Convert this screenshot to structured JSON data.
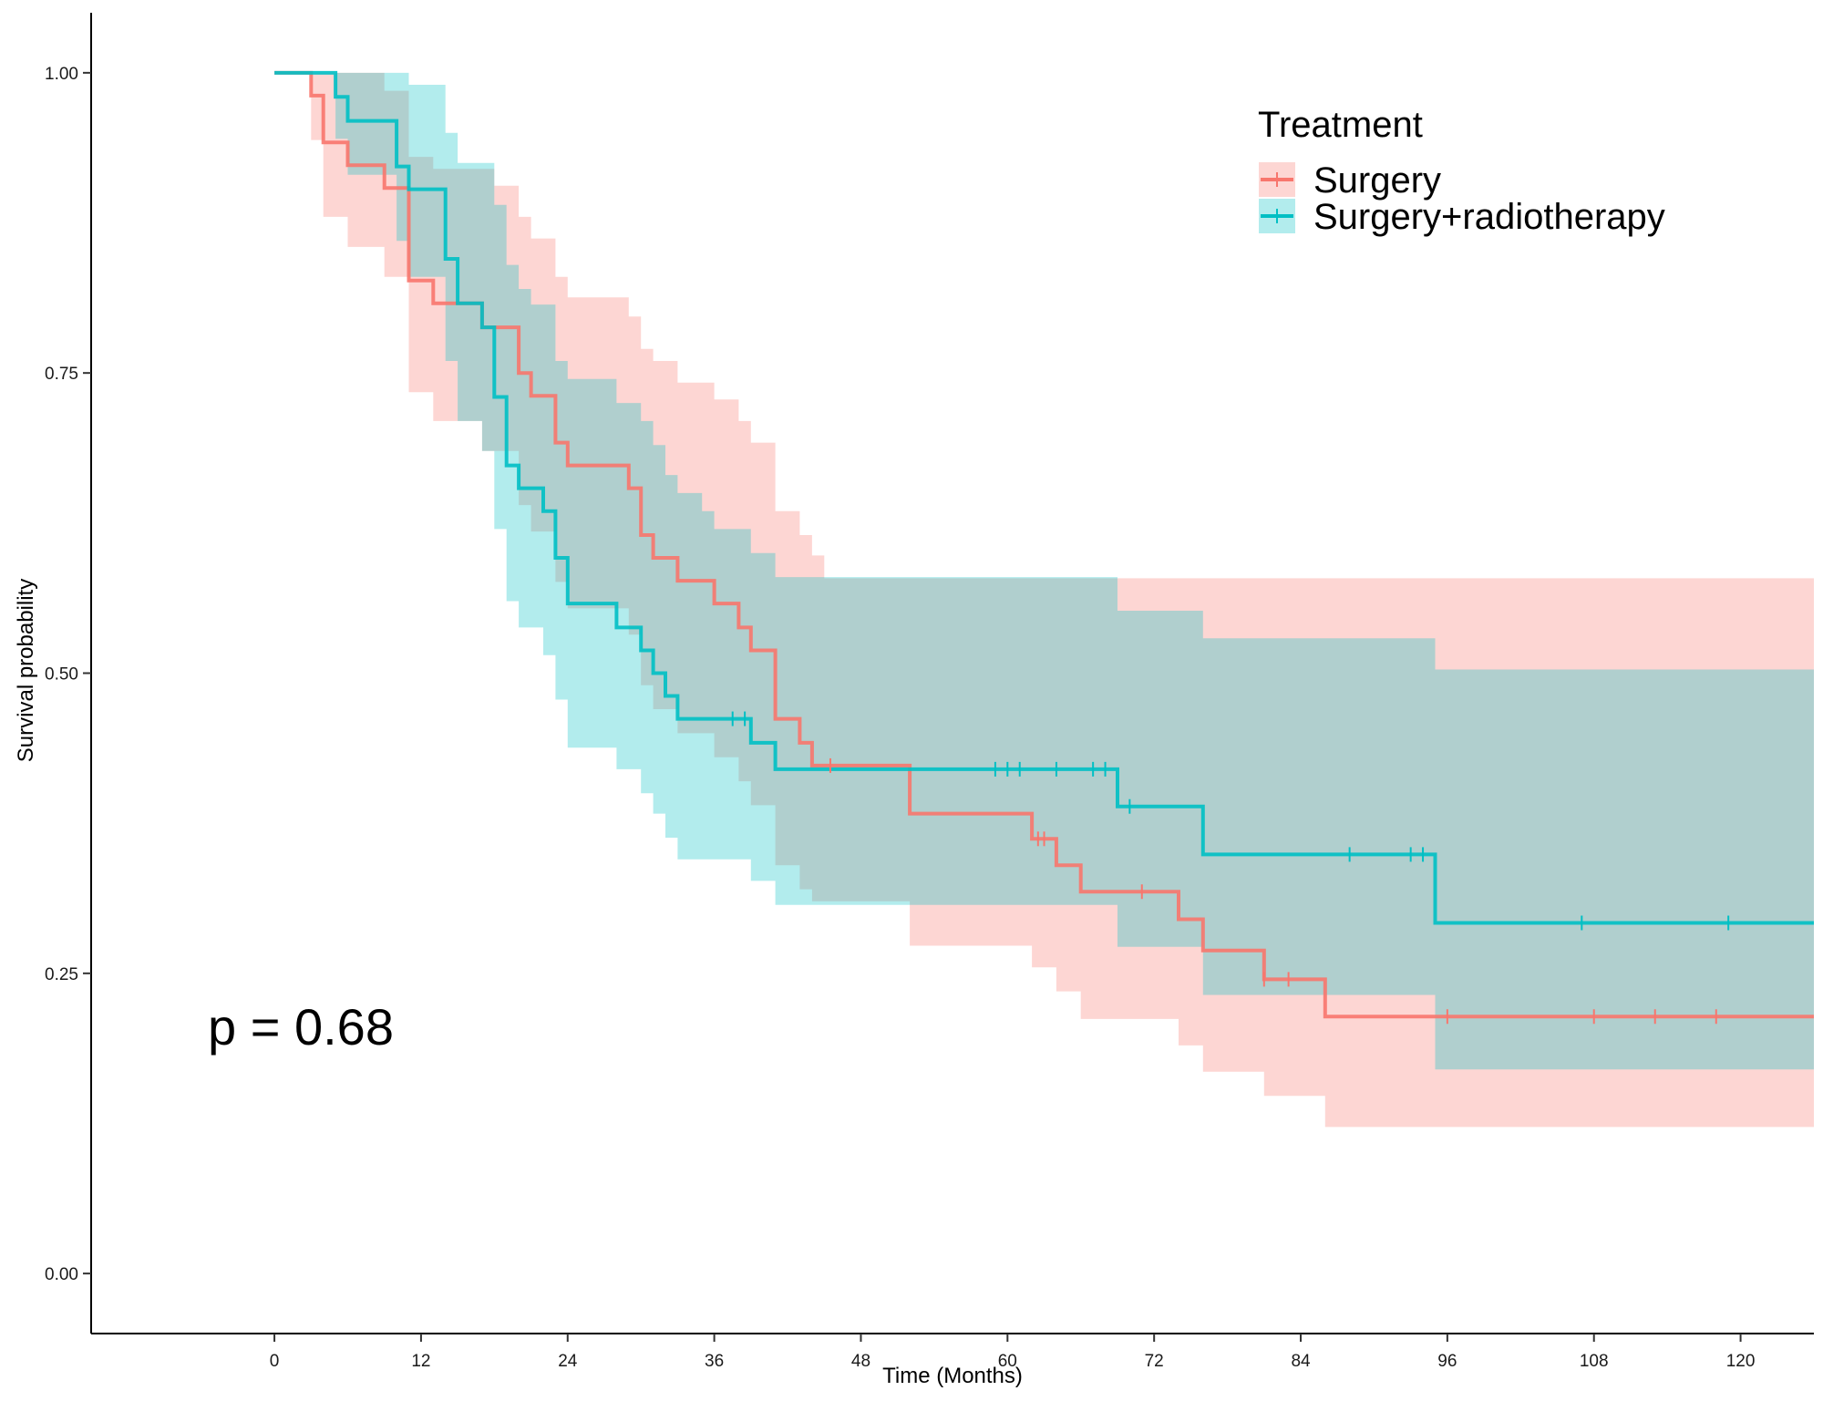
{
  "chart_data": {
    "type": "line",
    "subtype": "kaplan-meier-step",
    "xlabel": "Time (Months)",
    "ylabel": "Survival probability",
    "xlim": [
      -15,
      126
    ],
    "ylim": [
      -0.05,
      1.05
    ],
    "xticks": [
      0,
      12,
      24,
      36,
      48,
      60,
      72,
      84,
      96,
      108,
      120
    ],
    "yticks": [
      0.0,
      0.25,
      0.5,
      0.75,
      1.0
    ],
    "ytick_labels": [
      "0.00",
      "0.25",
      "0.50",
      "0.75",
      "1.00"
    ],
    "grid": false,
    "legend": {
      "title": "Treatment",
      "position": "top-right"
    },
    "annotation": "p = 0.68",
    "series": [
      {
        "name": "Surgery",
        "color": "#F8766D",
        "band_color": "#F8766D",
        "steps": [
          [
            0,
            1.0
          ],
          [
            3,
            0.981
          ],
          [
            4,
            0.942
          ],
          [
            6,
            0.923
          ],
          [
            9,
            0.904
          ],
          [
            11,
            0.827
          ],
          [
            13,
            0.808
          ],
          [
            17,
            0.788
          ],
          [
            20,
            0.75
          ],
          [
            21,
            0.731
          ],
          [
            23,
            0.692
          ],
          [
            24,
            0.673
          ],
          [
            29,
            0.654
          ],
          [
            30,
            0.615
          ],
          [
            31,
            0.596
          ],
          [
            33,
            0.577
          ],
          [
            36,
            0.558
          ],
          [
            38,
            0.538
          ],
          [
            39,
            0.519
          ],
          [
            41,
            0.462
          ],
          [
            43,
            0.442
          ],
          [
            44,
            0.423
          ],
          [
            52,
            0.383
          ],
          [
            62,
            0.362
          ],
          [
            64,
            0.34
          ],
          [
            66,
            0.318
          ],
          [
            74,
            0.295
          ],
          [
            76,
            0.269
          ],
          [
            81,
            0.245
          ],
          [
            86,
            0.214
          ],
          [
            126,
            0.214
          ]
        ],
        "lower": [
          [
            0,
            1.0
          ],
          [
            3,
            0.944
          ],
          [
            4,
            0.88
          ],
          [
            6,
            0.855
          ],
          [
            9,
            0.83
          ],
          [
            11,
            0.734
          ],
          [
            13,
            0.71
          ],
          [
            17,
            0.685
          ],
          [
            20,
            0.64
          ],
          [
            21,
            0.618
          ],
          [
            23,
            0.576
          ],
          [
            24,
            0.554
          ],
          [
            29,
            0.532
          ],
          [
            30,
            0.49
          ],
          [
            31,
            0.47
          ],
          [
            33,
            0.45
          ],
          [
            36,
            0.43
          ],
          [
            38,
            0.41
          ],
          [
            39,
            0.39
          ],
          [
            41,
            0.34
          ],
          [
            43,
            0.32
          ],
          [
            44,
            0.31
          ],
          [
            52,
            0.273
          ],
          [
            62,
            0.255
          ],
          [
            64,
            0.235
          ],
          [
            66,
            0.212
          ],
          [
            74,
            0.19
          ],
          [
            76,
            0.168
          ],
          [
            81,
            0.148
          ],
          [
            86,
            0.122
          ],
          [
            126,
            0.122
          ]
        ],
        "upper": [
          [
            0,
            1.0
          ],
          [
            3,
            1.0
          ],
          [
            4,
            1.0
          ],
          [
            6,
            1.0
          ],
          [
            9,
            0.985
          ],
          [
            11,
            0.93
          ],
          [
            13,
            0.92
          ],
          [
            18,
            0.906
          ],
          [
            20,
            0.88
          ],
          [
            21,
            0.862
          ],
          [
            23,
            0.83
          ],
          [
            24,
            0.813
          ],
          [
            29,
            0.797
          ],
          [
            30,
            0.77
          ],
          [
            31,
            0.76
          ],
          [
            33,
            0.742
          ],
          [
            36,
            0.728
          ],
          [
            38,
            0.71
          ],
          [
            39,
            0.692
          ],
          [
            41,
            0.635
          ],
          [
            43,
            0.615
          ],
          [
            44,
            0.598
          ],
          [
            45,
            0.579
          ],
          [
            126,
            0.579
          ]
        ],
        "censored": [
          45.5,
          62.5,
          63,
          71,
          81,
          83,
          96,
          108,
          113,
          118
        ]
      },
      {
        "name": "Surgery+radiotherapy",
        "color": "#00BFC4",
        "band_color": "#00BFC4",
        "steps": [
          [
            0,
            1.0
          ],
          [
            5,
            0.98
          ],
          [
            6,
            0.96
          ],
          [
            10,
            0.922
          ],
          [
            11,
            0.903
          ],
          [
            14,
            0.845
          ],
          [
            15,
            0.808
          ],
          [
            17,
            0.788
          ],
          [
            18,
            0.73
          ],
          [
            19,
            0.673
          ],
          [
            20,
            0.654
          ],
          [
            22,
            0.635
          ],
          [
            23,
            0.596
          ],
          [
            24,
            0.558
          ],
          [
            28,
            0.538
          ],
          [
            30,
            0.519
          ],
          [
            31,
            0.5
          ],
          [
            32,
            0.481
          ],
          [
            33,
            0.462
          ],
          [
            39,
            0.442
          ],
          [
            41,
            0.42
          ],
          [
            69,
            0.389
          ],
          [
            76,
            0.349
          ],
          [
            95,
            0.292
          ],
          [
            126,
            0.292
          ]
        ],
        "lower": [
          [
            0,
            1.0
          ],
          [
            5,
            0.945
          ],
          [
            6,
            0.915
          ],
          [
            10,
            0.86
          ],
          [
            11,
            0.83
          ],
          [
            14,
            0.76
          ],
          [
            15,
            0.71
          ],
          [
            17,
            0.685
          ],
          [
            18,
            0.62
          ],
          [
            19,
            0.56
          ],
          [
            20,
            0.538
          ],
          [
            22,
            0.515
          ],
          [
            23,
            0.478
          ],
          [
            24,
            0.438
          ],
          [
            28,
            0.42
          ],
          [
            30,
            0.4
          ],
          [
            31,
            0.383
          ],
          [
            32,
            0.363
          ],
          [
            33,
            0.345
          ],
          [
            39,
            0.327
          ],
          [
            41,
            0.307
          ],
          [
            69,
            0.272
          ],
          [
            76,
            0.232
          ],
          [
            95,
            0.17
          ],
          [
            126,
            0.17
          ]
        ],
        "upper": [
          [
            0,
            1.0
          ],
          [
            9,
            1.0
          ],
          [
            11,
            0.99
          ],
          [
            14,
            0.95
          ],
          [
            15,
            0.925
          ],
          [
            18,
            0.89
          ],
          [
            19,
            0.84
          ],
          [
            20,
            0.82
          ],
          [
            21,
            0.807
          ],
          [
            23,
            0.76
          ],
          [
            24,
            0.745
          ],
          [
            28,
            0.725
          ],
          [
            30,
            0.71
          ],
          [
            31,
            0.69
          ],
          [
            32,
            0.665
          ],
          [
            33,
            0.65
          ],
          [
            35,
            0.635
          ],
          [
            36,
            0.62
          ],
          [
            39,
            0.6
          ],
          [
            41,
            0.58
          ],
          [
            69,
            0.552
          ],
          [
            76,
            0.529
          ],
          [
            95,
            0.503
          ],
          [
            126,
            0.503
          ]
        ],
        "censored": [
          37.5,
          38.5,
          59,
          60,
          61,
          64,
          67,
          68,
          70,
          88,
          93,
          94,
          107,
          119
        ]
      }
    ]
  }
}
